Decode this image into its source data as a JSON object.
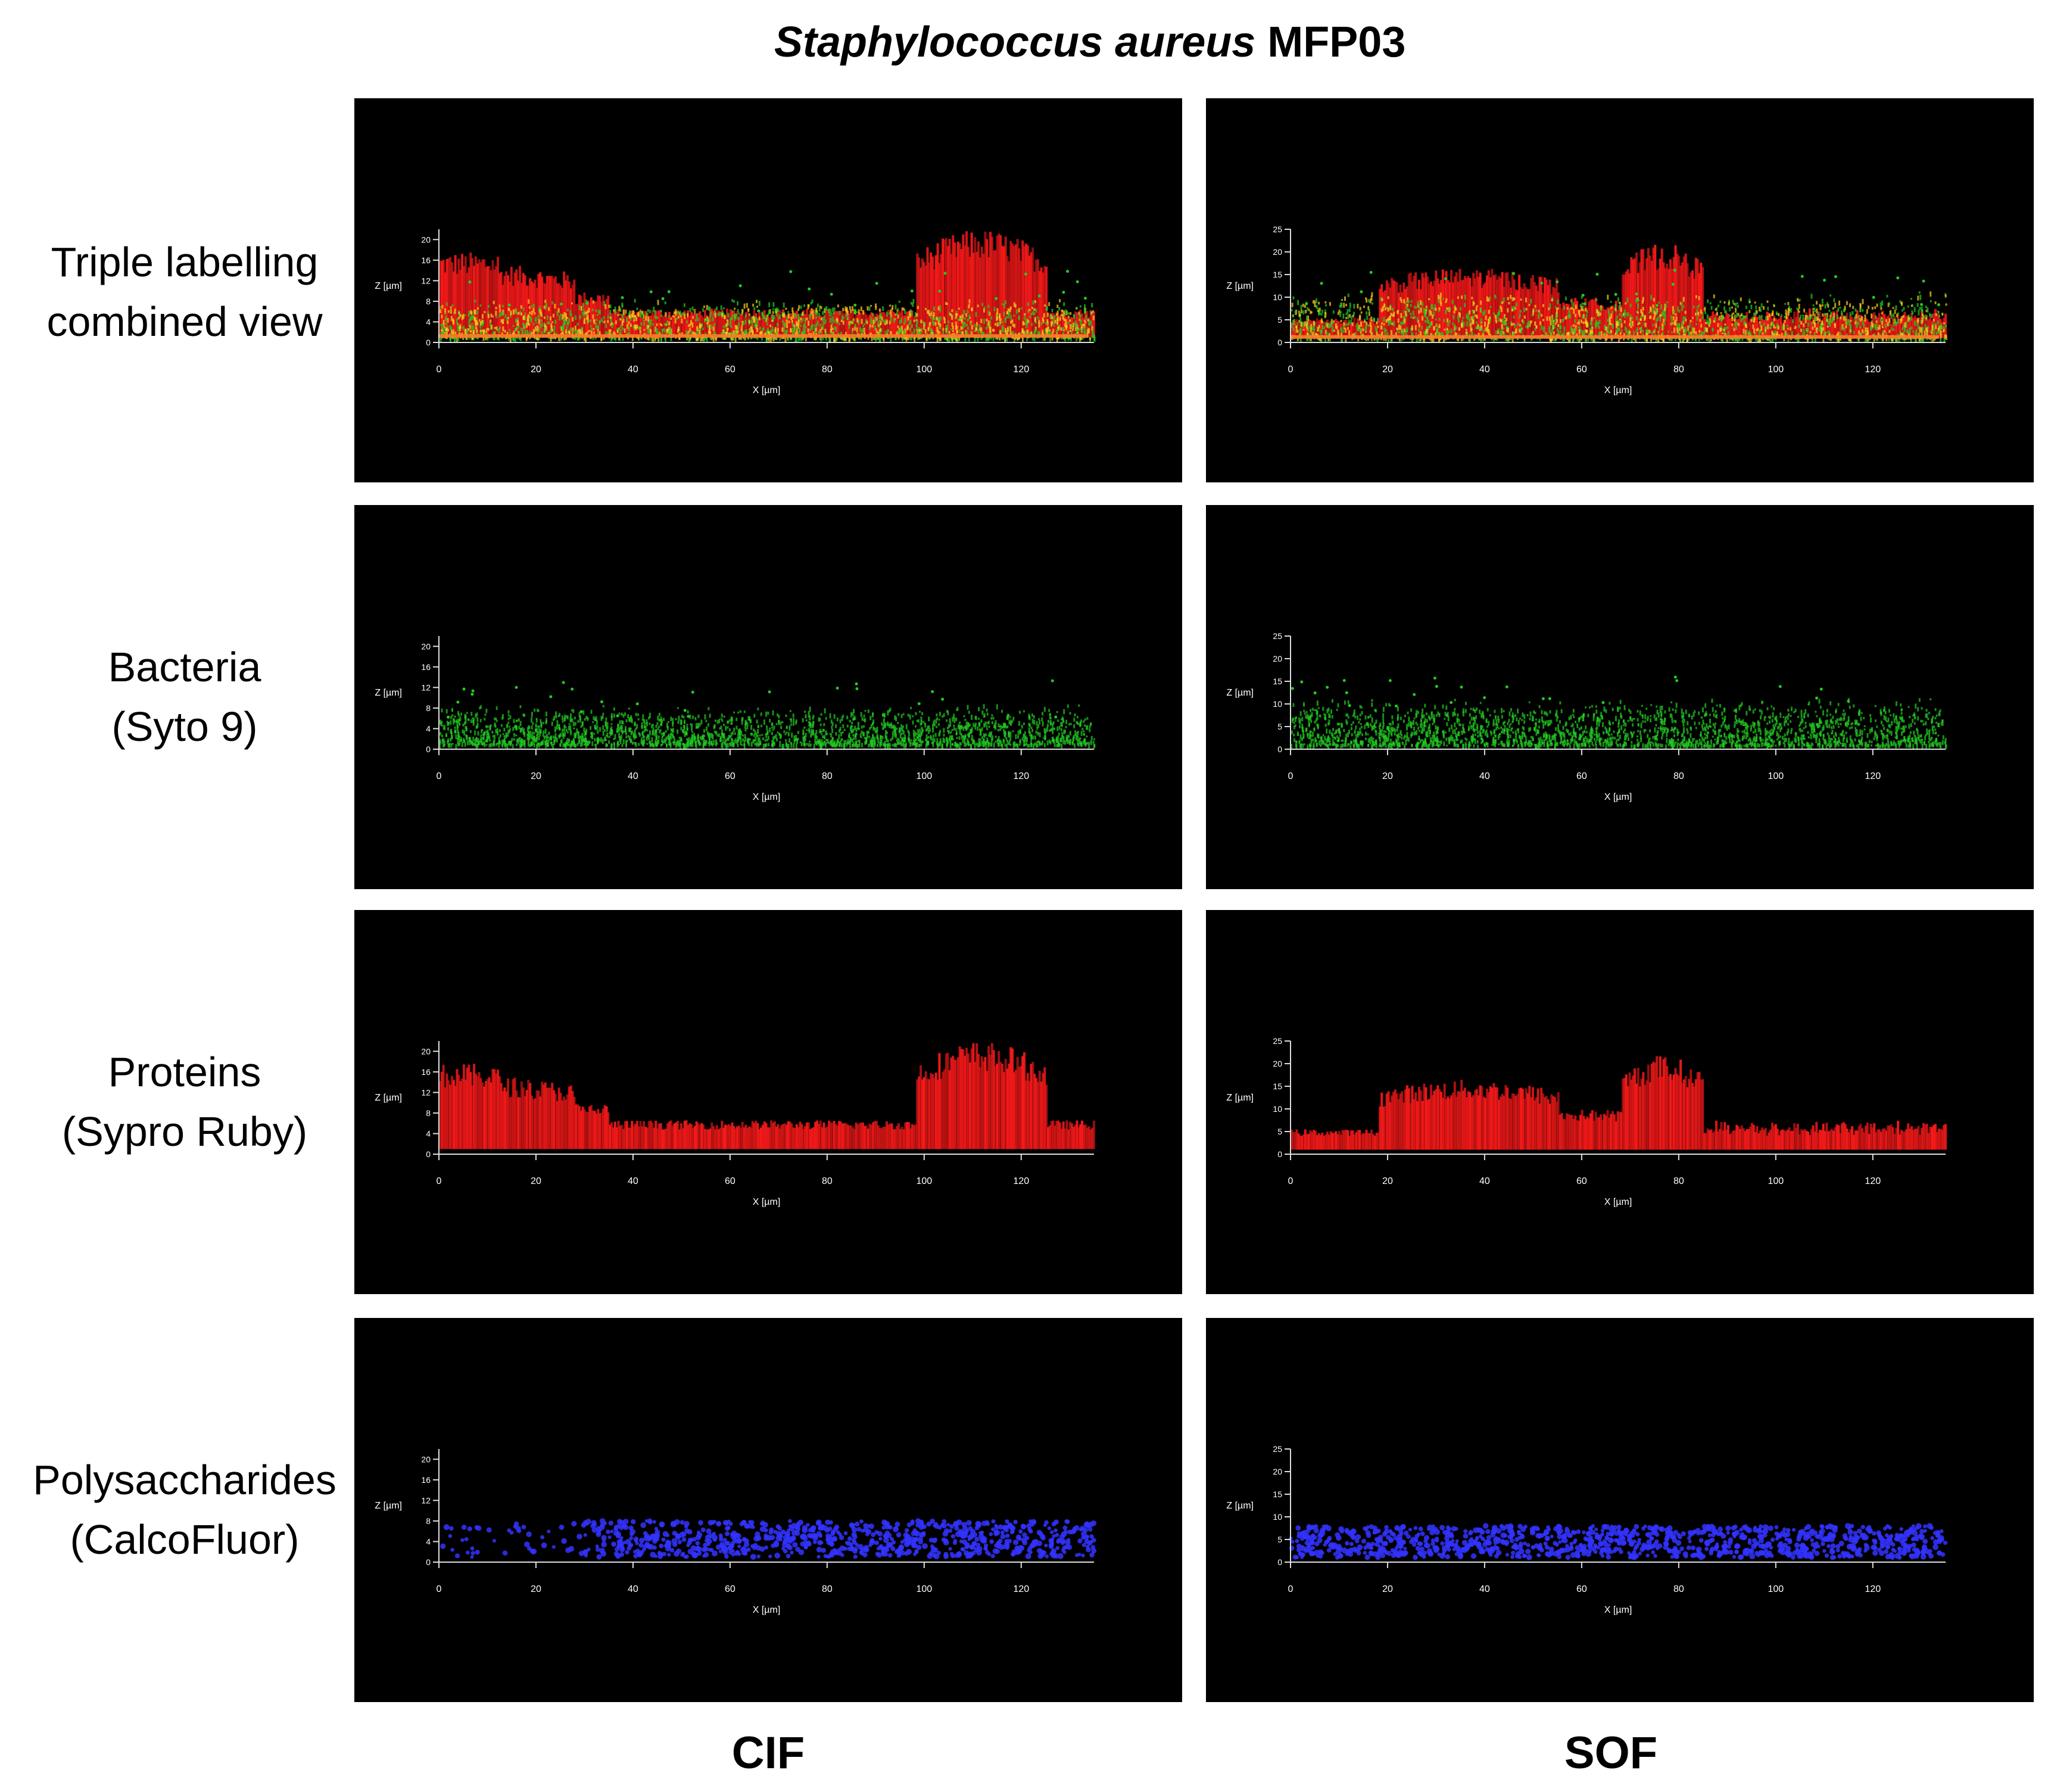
{
  "figure": {
    "title_species": "Staphylococcus aureus",
    "title_strain": "MFP03",
    "columns": [
      "CIF",
      "SOF"
    ],
    "rows": [
      {
        "line1": "Triple labelling",
        "line2": "combined view",
        "mode": "combined"
      },
      {
        "line1": "Bacteria",
        "line2": "(Syto 9)",
        "mode": "green"
      },
      {
        "line1": "Proteins",
        "line2": "(Sypro Ruby)",
        "mode": "red"
      },
      {
        "line1": "Polysaccharides",
        "line2": "(CalcoFluor)",
        "mode": "blue"
      }
    ]
  },
  "axes": {
    "x_label": "X [µm]",
    "z_label": "Z [µm]",
    "x_ticks": [
      0,
      20,
      40,
      60,
      80,
      100,
      120
    ],
    "x_max": 135,
    "cif_z_ticks": [
      0,
      4,
      8,
      12,
      16,
      20
    ],
    "cif_z_max": 22,
    "sof_z_ticks": [
      0,
      5,
      10,
      15,
      20,
      25
    ],
    "sof_z_max": 25
  },
  "colors": {
    "panel_bg": "#000000",
    "bacteria": "#22cc22",
    "proteins": "#ff1a1a",
    "polysaccharides": "#3333ff",
    "overlap": "#ffd21a"
  }
}
